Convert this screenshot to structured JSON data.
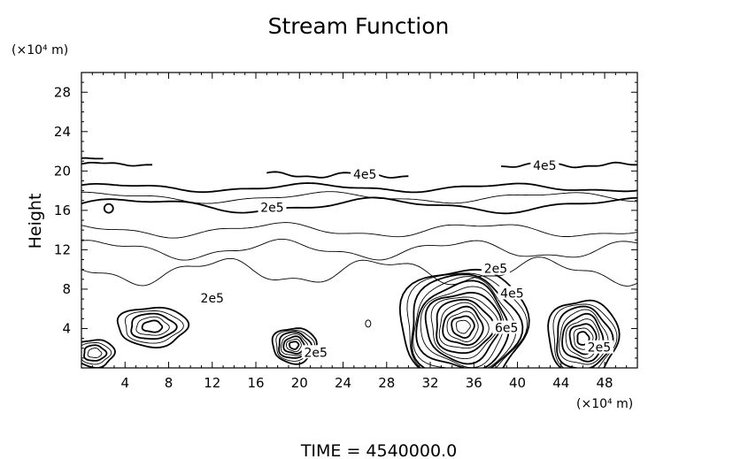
{
  "chart_data": {
    "type": "contour",
    "title": "Stream Function",
    "xlabel": "",
    "ylabel": "Height",
    "x_unit": "(×10⁴ m)",
    "y_unit": "(×10⁴ m)",
    "xlim": [
      0,
      51
    ],
    "ylim": [
      0,
      30
    ],
    "xticks": [
      4,
      8,
      12,
      16,
      20,
      24,
      28,
      32,
      36,
      40,
      44,
      48
    ],
    "yticks": [
      4,
      8,
      12,
      16,
      20,
      24,
      28
    ],
    "grid": false,
    "contour_labels": [
      {
        "text": "4e5",
        "x": 26,
        "y": 19.6
      },
      {
        "text": "4e5",
        "x": 42.5,
        "y": 20.5
      },
      {
        "text": "2e5",
        "x": 17.5,
        "y": 16.2
      },
      {
        "text": "2e5",
        "x": 12,
        "y": 7
      },
      {
        "text": "2e5",
        "x": 38,
        "y": 10
      },
      {
        "text": "4e5",
        "x": 39.5,
        "y": 7.5
      },
      {
        "text": "6e5",
        "x": 39,
        "y": 4
      },
      {
        "text": "2e5",
        "x": 21.5,
        "y": 1.5
      },
      {
        "text": "2e5",
        "x": 47.5,
        "y": 2
      }
    ],
    "vortices": [
      {
        "cx": 6.5,
        "cy": 4.2,
        "rx": 3.2,
        "ry": 2.0,
        "levels": 5
      },
      {
        "cx": 19.5,
        "cy": 2.3,
        "rx": 2.0,
        "ry": 1.8,
        "levels": 7
      },
      {
        "cx": 35,
        "cy": 4.2,
        "rx": 5.8,
        "ry": 6.0,
        "levels": 14
      },
      {
        "cx": 46,
        "cy": 3.0,
        "rx": 3.2,
        "ry": 4.0,
        "levels": 9
      },
      {
        "cx": 1.2,
        "cy": 1.5,
        "rx": 1.8,
        "ry": 1.4,
        "levels": 4
      }
    ],
    "footer": "TIME  =  4540000.0"
  }
}
